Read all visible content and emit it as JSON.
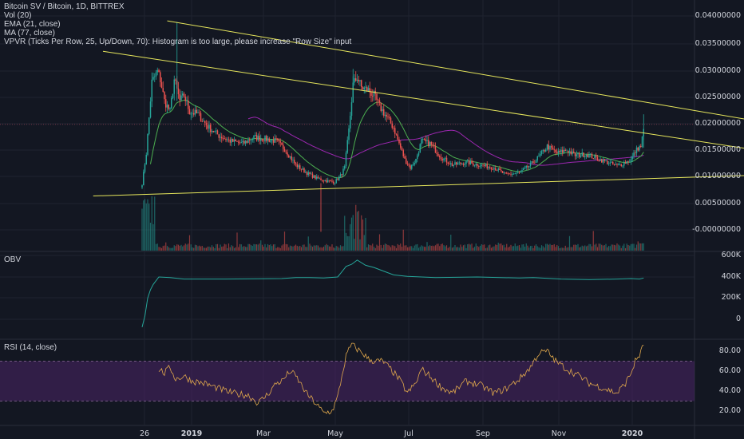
{
  "header": {
    "title": "Bitcoin SV / Bitcoin, 1D, BITTREX",
    "studies": [
      "Vol (20)",
      "EMA (21, close)",
      "MA (77, close)",
      "VPVR (Ticks Per Row, 25, Up/Down, 70): Histogram is too large, please increase \"Row Size\" input"
    ]
  },
  "panes": {
    "obv_label": "OBV",
    "rsi_label": "RSI (14, close)"
  },
  "colors": {
    "background": "#131722",
    "up": "#26a69a",
    "down": "#ef5350",
    "trendline": "#e6e65c",
    "ema": "#4caf50",
    "ma": "#9c27b0",
    "obv": "#26a69a",
    "rsi": "#e0a84c",
    "rsi_band": "#4a2466"
  },
  "chart_data": [
    {
      "type": "candlestick",
      "name": "price",
      "y_ticks": [
        "0.04000000",
        "0.03500000",
        "0.03000000",
        "0.02500000",
        "0.02000000",
        "0.01500000",
        "0.01000000",
        "0.00500000",
        "-0.00000000"
      ],
      "ylim": [
        -0.00075,
        0.041
      ],
      "x_ticks": [
        {
          "label": "26",
          "bold": false
        },
        {
          "label": "2019",
          "bold": true
        },
        {
          "label": "Mar",
          "bold": false
        },
        {
          "label": "May",
          "bold": false
        },
        {
          "label": "Jul",
          "bold": false
        },
        {
          "label": "Sep",
          "bold": false
        },
        {
          "label": "Nov",
          "bold": false
        },
        {
          "label": "2020",
          "bold": true
        }
      ],
      "x_range_days": [
        -4,
        409
      ],
      "anchors": [
        [
          0,
          0.0085
        ],
        [
          3,
          0.0142
        ],
        [
          7,
          0.0275
        ],
        [
          11,
          0.0295
        ],
        [
          13,
          0.028
        ],
        [
          16,
          0.024
        ],
        [
          20,
          0.022
        ],
        [
          23,
          0.028
        ],
        [
          27,
          0.024
        ],
        [
          30,
          0.025
        ],
        [
          34,
          0.022
        ],
        [
          40,
          0.0215
        ],
        [
          47,
          0.0192
        ],
        [
          55,
          0.0175
        ],
        [
          63,
          0.0165
        ],
        [
          72,
          0.016
        ],
        [
          80,
          0.0172
        ],
        [
          90,
          0.0168
        ],
        [
          96,
          0.0165
        ],
        [
          102,
          0.015
        ],
        [
          110,
          0.012
        ],
        [
          118,
          0.0105
        ],
        [
          125,
          0.0095
        ],
        [
          133,
          0.009
        ],
        [
          138,
          0.0088
        ],
        [
          142,
          0.01
        ],
        [
          145,
          0.0115
        ],
        [
          148,
          0.0185
        ],
        [
          151,
          0.027
        ],
        [
          154,
          0.0285
        ],
        [
          157,
          0.0265
        ],
        [
          162,
          0.026
        ],
        [
          166,
          0.025
        ],
        [
          170,
          0.023
        ],
        [
          175,
          0.021
        ],
        [
          180,
          0.019
        ],
        [
          184,
          0.016
        ],
        [
          188,
          0.013
        ],
        [
          192,
          0.0115
        ],
        [
          196,
          0.013
        ],
        [
          200,
          0.0165
        ],
        [
          206,
          0.016
        ],
        [
          214,
          0.0135
        ],
        [
          222,
          0.012
        ],
        [
          232,
          0.0125
        ],
        [
          242,
          0.012
        ],
        [
          252,
          0.0115
        ],
        [
          260,
          0.0102
        ],
        [
          270,
          0.0105
        ],
        [
          277,
          0.0118
        ],
        [
          284,
          0.0135
        ],
        [
          290,
          0.0155
        ],
        [
          297,
          0.0142
        ],
        [
          304,
          0.0148
        ],
        [
          310,
          0.0138
        ],
        [
          318,
          0.014
        ],
        [
          326,
          0.0132
        ],
        [
          333,
          0.0125
        ],
        [
          340,
          0.0118
        ],
        [
          346,
          0.0125
        ],
        [
          350,
          0.013
        ],
        [
          353,
          0.0145
        ],
        [
          355,
          0.0152
        ],
        [
          357,
          0.0155
        ],
        [
          359,
          0.0185
        ]
      ],
      "trendlines": [
        {
          "from": [
            -35,
            0.0062
          ],
          "to": [
            490,
            0.0105
          ]
        },
        {
          "from": [
            18,
            0.039
          ],
          "to": [
            490,
            0.018
          ]
        },
        {
          "from": [
            -28,
            0.0333
          ],
          "to": [
            483,
            0.0131
          ]
        }
      ],
      "horizontal_level": 0.0196
    },
    {
      "type": "line",
      "name": "OBV",
      "y_ticks": [
        "600K",
        "400K",
        "200K",
        "0"
      ],
      "ylim": [
        -100,
        650
      ],
      "points": [
        [
          0,
          -75
        ],
        [
          2,
          30
        ],
        [
          4,
          200
        ],
        [
          6,
          280
        ],
        [
          8,
          330
        ],
        [
          12,
          400
        ],
        [
          20,
          395
        ],
        [
          30,
          380
        ],
        [
          60,
          380
        ],
        [
          100,
          385
        ],
        [
          110,
          395
        ],
        [
          120,
          395
        ],
        [
          130,
          390
        ],
        [
          140,
          400
        ],
        [
          143,
          450
        ],
        [
          146,
          500
        ],
        [
          150,
          520
        ],
        [
          154,
          560
        ],
        [
          160,
          510
        ],
        [
          166,
          490
        ],
        [
          172,
          460
        ],
        [
          180,
          420
        ],
        [
          190,
          405
        ],
        [
          200,
          400
        ],
        [
          210,
          395
        ],
        [
          240,
          400
        ],
        [
          270,
          390
        ],
        [
          280,
          395
        ],
        [
          300,
          380
        ],
        [
          320,
          375
        ],
        [
          340,
          380
        ],
        [
          350,
          385
        ],
        [
          356,
          380
        ],
        [
          359,
          390
        ]
      ]
    },
    {
      "type": "line",
      "name": "RSI",
      "y_ticks": [
        "80.00",
        "60.00",
        "40.00",
        "20.00"
      ],
      "ylim": [
        12,
        90
      ],
      "band": [
        30,
        70
      ],
      "points": [
        [
          12,
          62
        ],
        [
          16,
          58
        ],
        [
          20,
          64
        ],
        [
          24,
          52
        ],
        [
          30,
          55
        ],
        [
          36,
          50
        ],
        [
          44,
          48
        ],
        [
          52,
          44
        ],
        [
          60,
          40
        ],
        [
          68,
          37
        ],
        [
          76,
          36
        ],
        [
          83,
          28
        ],
        [
          90,
          37
        ],
        [
          96,
          48
        ],
        [
          100,
          50
        ],
        [
          106,
          60
        ],
        [
          110,
          55
        ],
        [
          118,
          37
        ],
        [
          124,
          28
        ],
        [
          130,
          18
        ],
        [
          136,
          20
        ],
        [
          140,
          34
        ],
        [
          143,
          55
        ],
        [
          146,
          75
        ],
        [
          150,
          87
        ],
        [
          154,
          82
        ],
        [
          158,
          78
        ],
        [
          162,
          72
        ],
        [
          166,
          70
        ],
        [
          172,
          70
        ],
        [
          178,
          62
        ],
        [
          184,
          52
        ],
        [
          190,
          38
        ],
        [
          196,
          48
        ],
        [
          200,
          62
        ],
        [
          206,
          55
        ],
        [
          214,
          44
        ],
        [
          222,
          38
        ],
        [
          232,
          50
        ],
        [
          242,
          46
        ],
        [
          252,
          38
        ],
        [
          260,
          42
        ],
        [
          270,
          52
        ],
        [
          278,
          64
        ],
        [
          284,
          78
        ],
        [
          290,
          80
        ],
        [
          296,
          70
        ],
        [
          304,
          62
        ],
        [
          312,
          56
        ],
        [
          320,
          48
        ],
        [
          330,
          43
        ],
        [
          340,
          38
        ],
        [
          346,
          48
        ],
        [
          350,
          58
        ],
        [
          353,
          70
        ],
        [
          356,
          76
        ],
        [
          359,
          86
        ]
      ]
    }
  ]
}
